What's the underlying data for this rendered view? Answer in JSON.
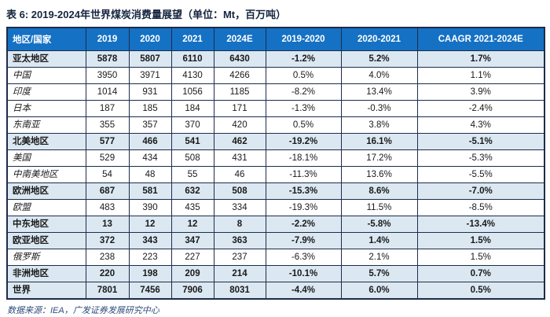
{
  "title": "表 6: 2019-2024年世界煤炭消费量展望（单位：Mt，百万吨）",
  "source": "数据来源：IEA，广发证券发展研究中心",
  "colors": {
    "header_bg": "#1571C4",
    "header_text": "#FFFFFF",
    "highlight_row_bg": "#DBE8F2",
    "border": "#1E2C49",
    "title_text": "#152540",
    "body_text": "#1A1A1A",
    "source_text": "#2F4C7C"
  },
  "table": {
    "columns": [
      "地区/国家",
      "2019",
      "2020",
      "2021",
      "2024E",
      "2019-2020",
      "2020-2021",
      "CAAGR 2021-2024E"
    ],
    "rows": [
      {
        "region": "亚太地区",
        "values": [
          "5878",
          "5807",
          "6110",
          "6430",
          "-1.2%",
          "5.2%",
          "1.7%"
        ],
        "highlight": true
      },
      {
        "region": "中国",
        "values": [
          "3950",
          "3971",
          "4130",
          "4266",
          "0.5%",
          "4.0%",
          "1.1%"
        ],
        "highlight": false
      },
      {
        "region": "印度",
        "values": [
          "1014",
          "931",
          "1056",
          "1185",
          "-8.2%",
          "13.4%",
          "3.9%"
        ],
        "highlight": false
      },
      {
        "region": "日本",
        "values": [
          "187",
          "185",
          "184",
          "171",
          "-1.3%",
          "-0.3%",
          "-2.4%"
        ],
        "highlight": false
      },
      {
        "region": "东南亚",
        "values": [
          "355",
          "357",
          "370",
          "420",
          "0.5%",
          "3.8%",
          "4.3%"
        ],
        "highlight": false
      },
      {
        "region": "北美地区",
        "values": [
          "577",
          "466",
          "541",
          "462",
          "-19.2%",
          "16.1%",
          "-5.1%"
        ],
        "highlight": true
      },
      {
        "region": "美国",
        "values": [
          "529",
          "434",
          "508",
          "431",
          "-18.1%",
          "17.2%",
          "-5.3%"
        ],
        "highlight": false
      },
      {
        "region": "中南美地区",
        "values": [
          "54",
          "48",
          "55",
          "46",
          "-11.3%",
          "13.6%",
          "-5.5%"
        ],
        "highlight": false
      },
      {
        "region": "欧洲地区",
        "values": [
          "687",
          "581",
          "632",
          "508",
          "-15.3%",
          "8.6%",
          "-7.0%"
        ],
        "highlight": true
      },
      {
        "region": "欧盟",
        "values": [
          "483",
          "390",
          "435",
          "334",
          "-19.3%",
          "11.5%",
          "-8.5%"
        ],
        "highlight": false
      },
      {
        "region": "中东地区",
        "values": [
          "13",
          "12",
          "12",
          "8",
          "-2.2%",
          "-5.8%",
          "-13.4%"
        ],
        "highlight": true
      },
      {
        "region": "欧亚地区",
        "values": [
          "372",
          "343",
          "347",
          "363",
          "-7.9%",
          "1.4%",
          "1.5%"
        ],
        "highlight": true
      },
      {
        "region": "俄罗斯",
        "values": [
          "238",
          "223",
          "227",
          "237",
          "-6.3%",
          "2.1%",
          "1.5%"
        ],
        "highlight": false
      },
      {
        "region": "非洲地区",
        "values": [
          "220",
          "198",
          "209",
          "214",
          "-10.1%",
          "5.7%",
          "0.7%"
        ],
        "highlight": true
      },
      {
        "region": "世界",
        "values": [
          "7801",
          "7456",
          "7906",
          "8031",
          "-4.4%",
          "6.0%",
          "0.5%"
        ],
        "highlight": true
      }
    ]
  }
}
